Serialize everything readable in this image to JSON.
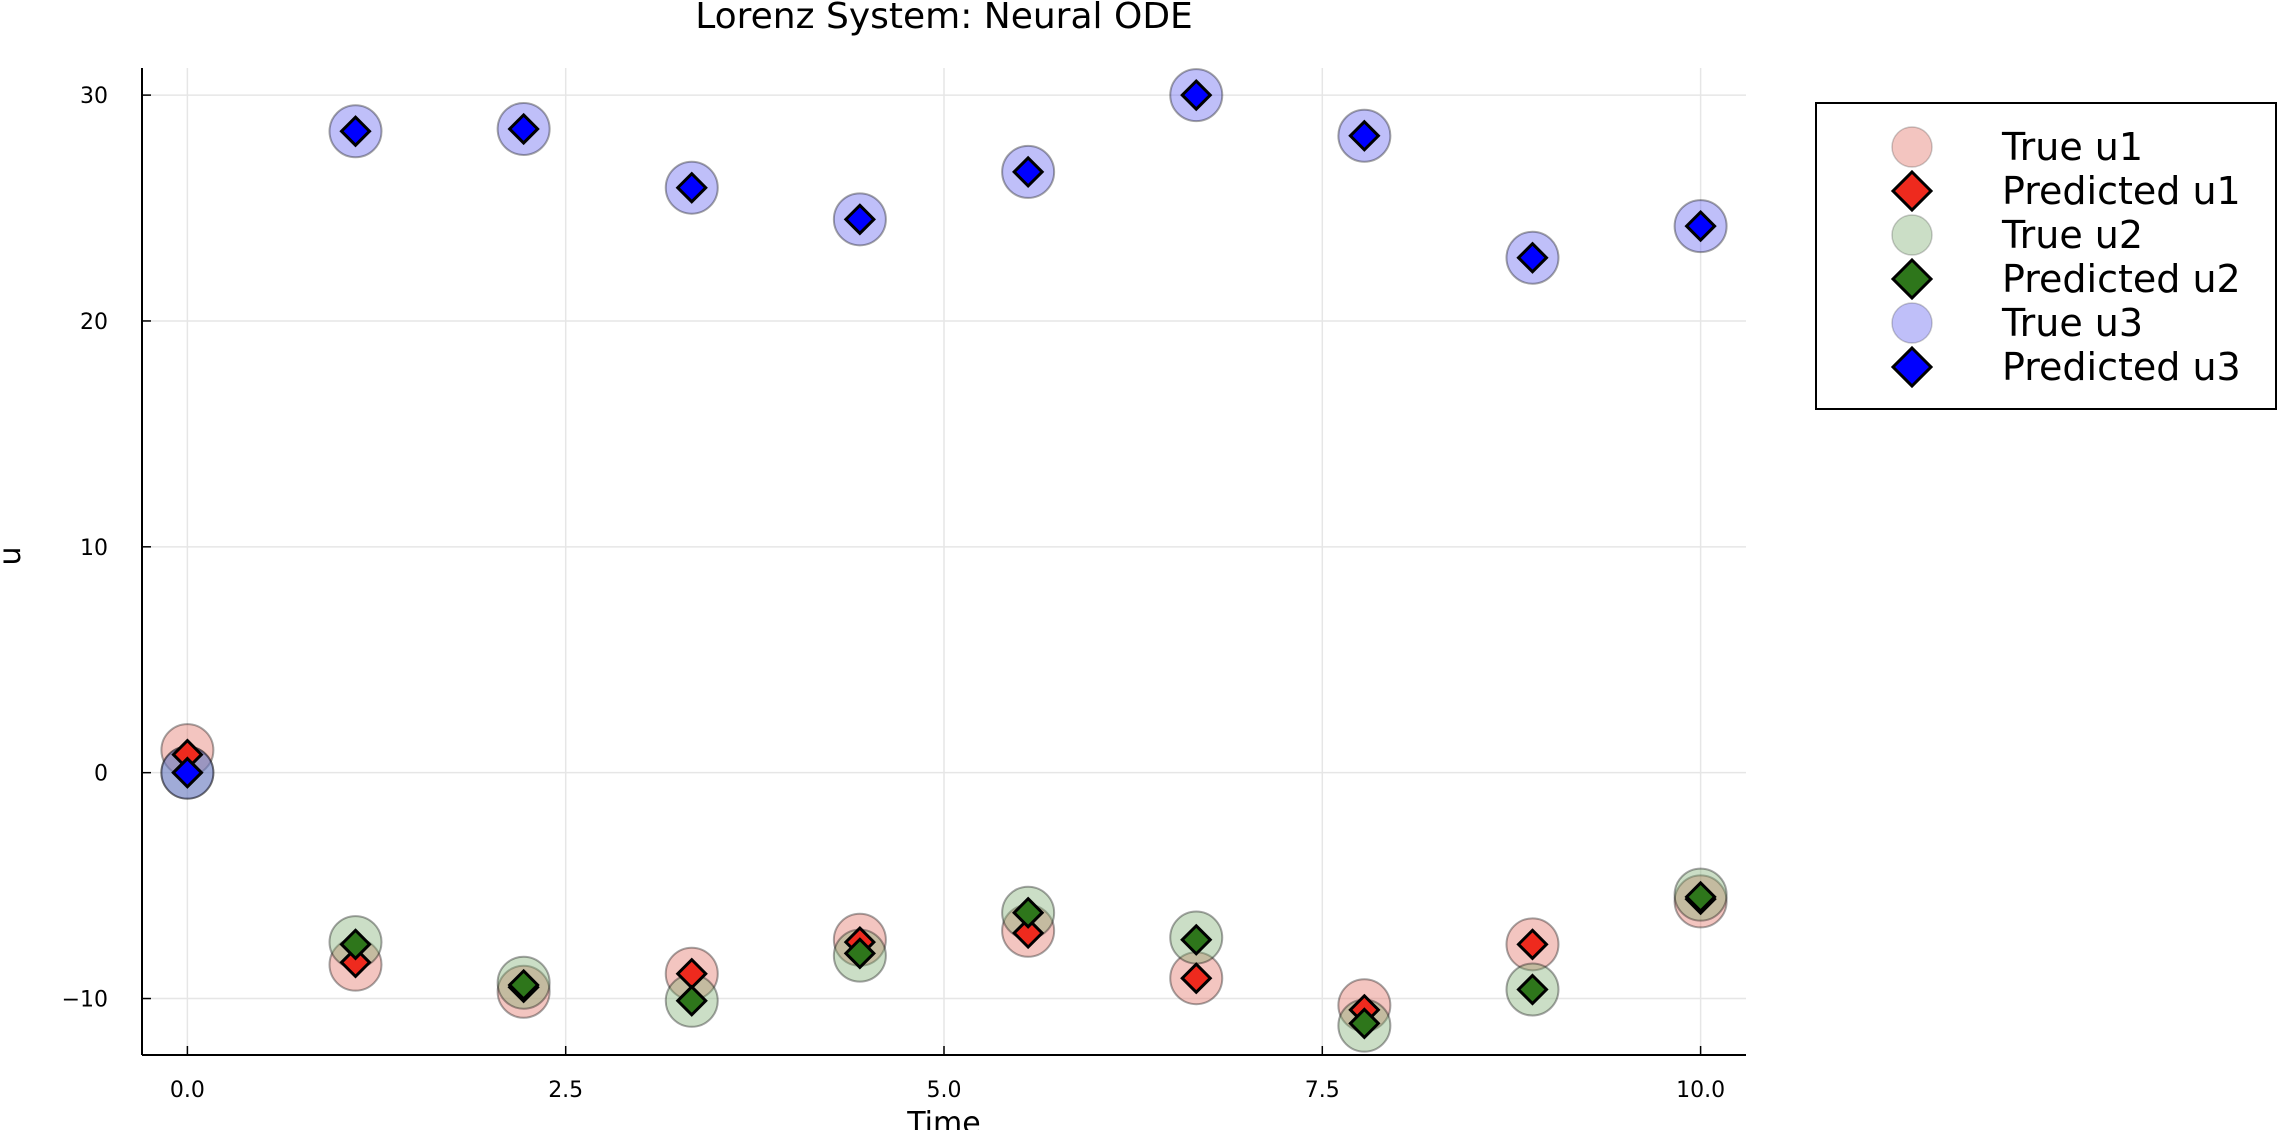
{
  "chart_data": {
    "type": "scatter",
    "title": "Lorenz System: Neural ODE",
    "xlabel": "Time",
    "ylabel": "u",
    "xlim": [
      -0.3,
      10.3
    ],
    "ylim": [
      -12.5,
      31.2
    ],
    "xticks": [
      0,
      2.5,
      5,
      7.5,
      10
    ],
    "xtick_labels": [
      "0.0",
      "2.5",
      "5.0",
      "7.5",
      "10.0"
    ],
    "yticks": [
      -10,
      0,
      10,
      20,
      30
    ],
    "ytick_labels": [
      "−10",
      "0",
      "10",
      "20",
      "30"
    ],
    "grid": true,
    "legend_position": "outside top-right",
    "x": [
      0,
      1.111,
      2.222,
      3.333,
      4.444,
      5.556,
      6.667,
      7.778,
      8.889,
      10.0
    ],
    "series": [
      {
        "name": "True u1",
        "marker": "circle",
        "color": "#e26f62",
        "values": [
          1.0,
          -8.5,
          -9.7,
          -8.9,
          -7.4,
          -7.0,
          -9.1,
          -10.3,
          -7.6,
          -5.7
        ]
      },
      {
        "name": "Predicted u1",
        "marker": "diamond",
        "color": "#ee2a1e",
        "values": [
          0.8,
          -8.4,
          -9.5,
          -8.9,
          -7.5,
          -7.1,
          -9.1,
          -10.5,
          -7.6,
          -5.6
        ]
      },
      {
        "name": "True u2",
        "marker": "circle",
        "color": "#7dac70",
        "values": [
          0.0,
          -7.5,
          -9.3,
          -10.1,
          -8.1,
          -6.2,
          -7.3,
          -11.2,
          -9.6,
          -5.4
        ]
      },
      {
        "name": "Predicted u2",
        "marker": "diamond",
        "color": "#2e761b",
        "values": [
          0.0,
          -7.6,
          -9.4,
          -10.1,
          -8.0,
          -6.2,
          -7.4,
          -11.1,
          -9.6,
          -5.5
        ]
      },
      {
        "name": "True u3",
        "marker": "circle",
        "color": "#5f5ff0",
        "values": [
          0.0,
          28.4,
          28.5,
          25.9,
          24.5,
          26.6,
          30.0,
          28.2,
          22.8,
          24.2
        ]
      },
      {
        "name": "Predicted u3",
        "marker": "diamond",
        "color": "#0000ff",
        "values": [
          0.0,
          28.4,
          28.5,
          25.9,
          24.5,
          26.6,
          30.0,
          28.2,
          22.8,
          24.2
        ]
      }
    ]
  }
}
